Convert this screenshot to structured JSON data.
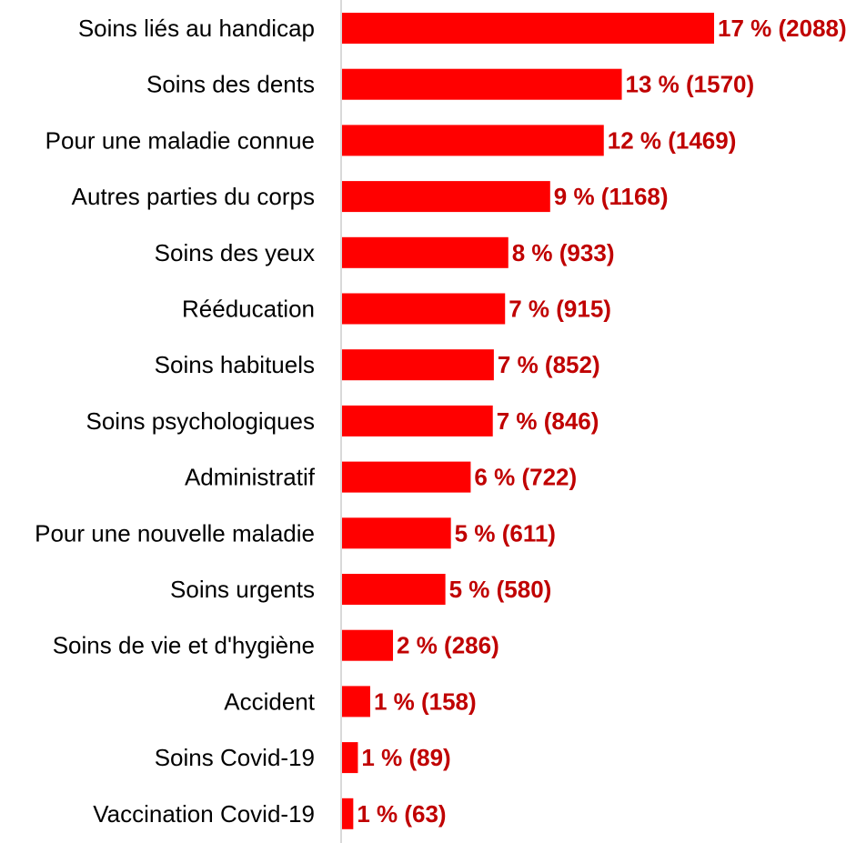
{
  "chart_data": {
    "type": "bar",
    "orientation": "horizontal",
    "categories": [
      "Soins liés au handicap",
      "Soins des dents",
      "Pour une maladie connue",
      "Autres parties du corps",
      "Soins des yeux",
      "Rééducation",
      "Soins habituels",
      "Soins psychologiques",
      "Administratif",
      "Pour une nouvelle maladie",
      "Soins urgents",
      "Soins de vie et d'hygiène",
      "Accident",
      "Soins Covid-19",
      "Vaccination Covid-19"
    ],
    "values": [
      2088,
      1570,
      1469,
      1168,
      933,
      915,
      852,
      846,
      722,
      611,
      580,
      286,
      158,
      89,
      63
    ],
    "data_labels": [
      "17 % (2088)",
      "13 % (1570)",
      "12 % (1469)",
      "9 % (1168)",
      "8 % (933)",
      "7 % (915)",
      "7 % (852)",
      "7 % (846)",
      "6 % (722)",
      "5 % (611)",
      "5 % (580)",
      "2 % (286)",
      "1 % (158)",
      "1 % (89)",
      "1 % (63)"
    ],
    "xlim": [
      0,
      2088
    ],
    "grid": false,
    "legend": "none",
    "bar_color": "#ff0000",
    "label_color": "#c00000",
    "axis_color": "#d9d9d9"
  }
}
